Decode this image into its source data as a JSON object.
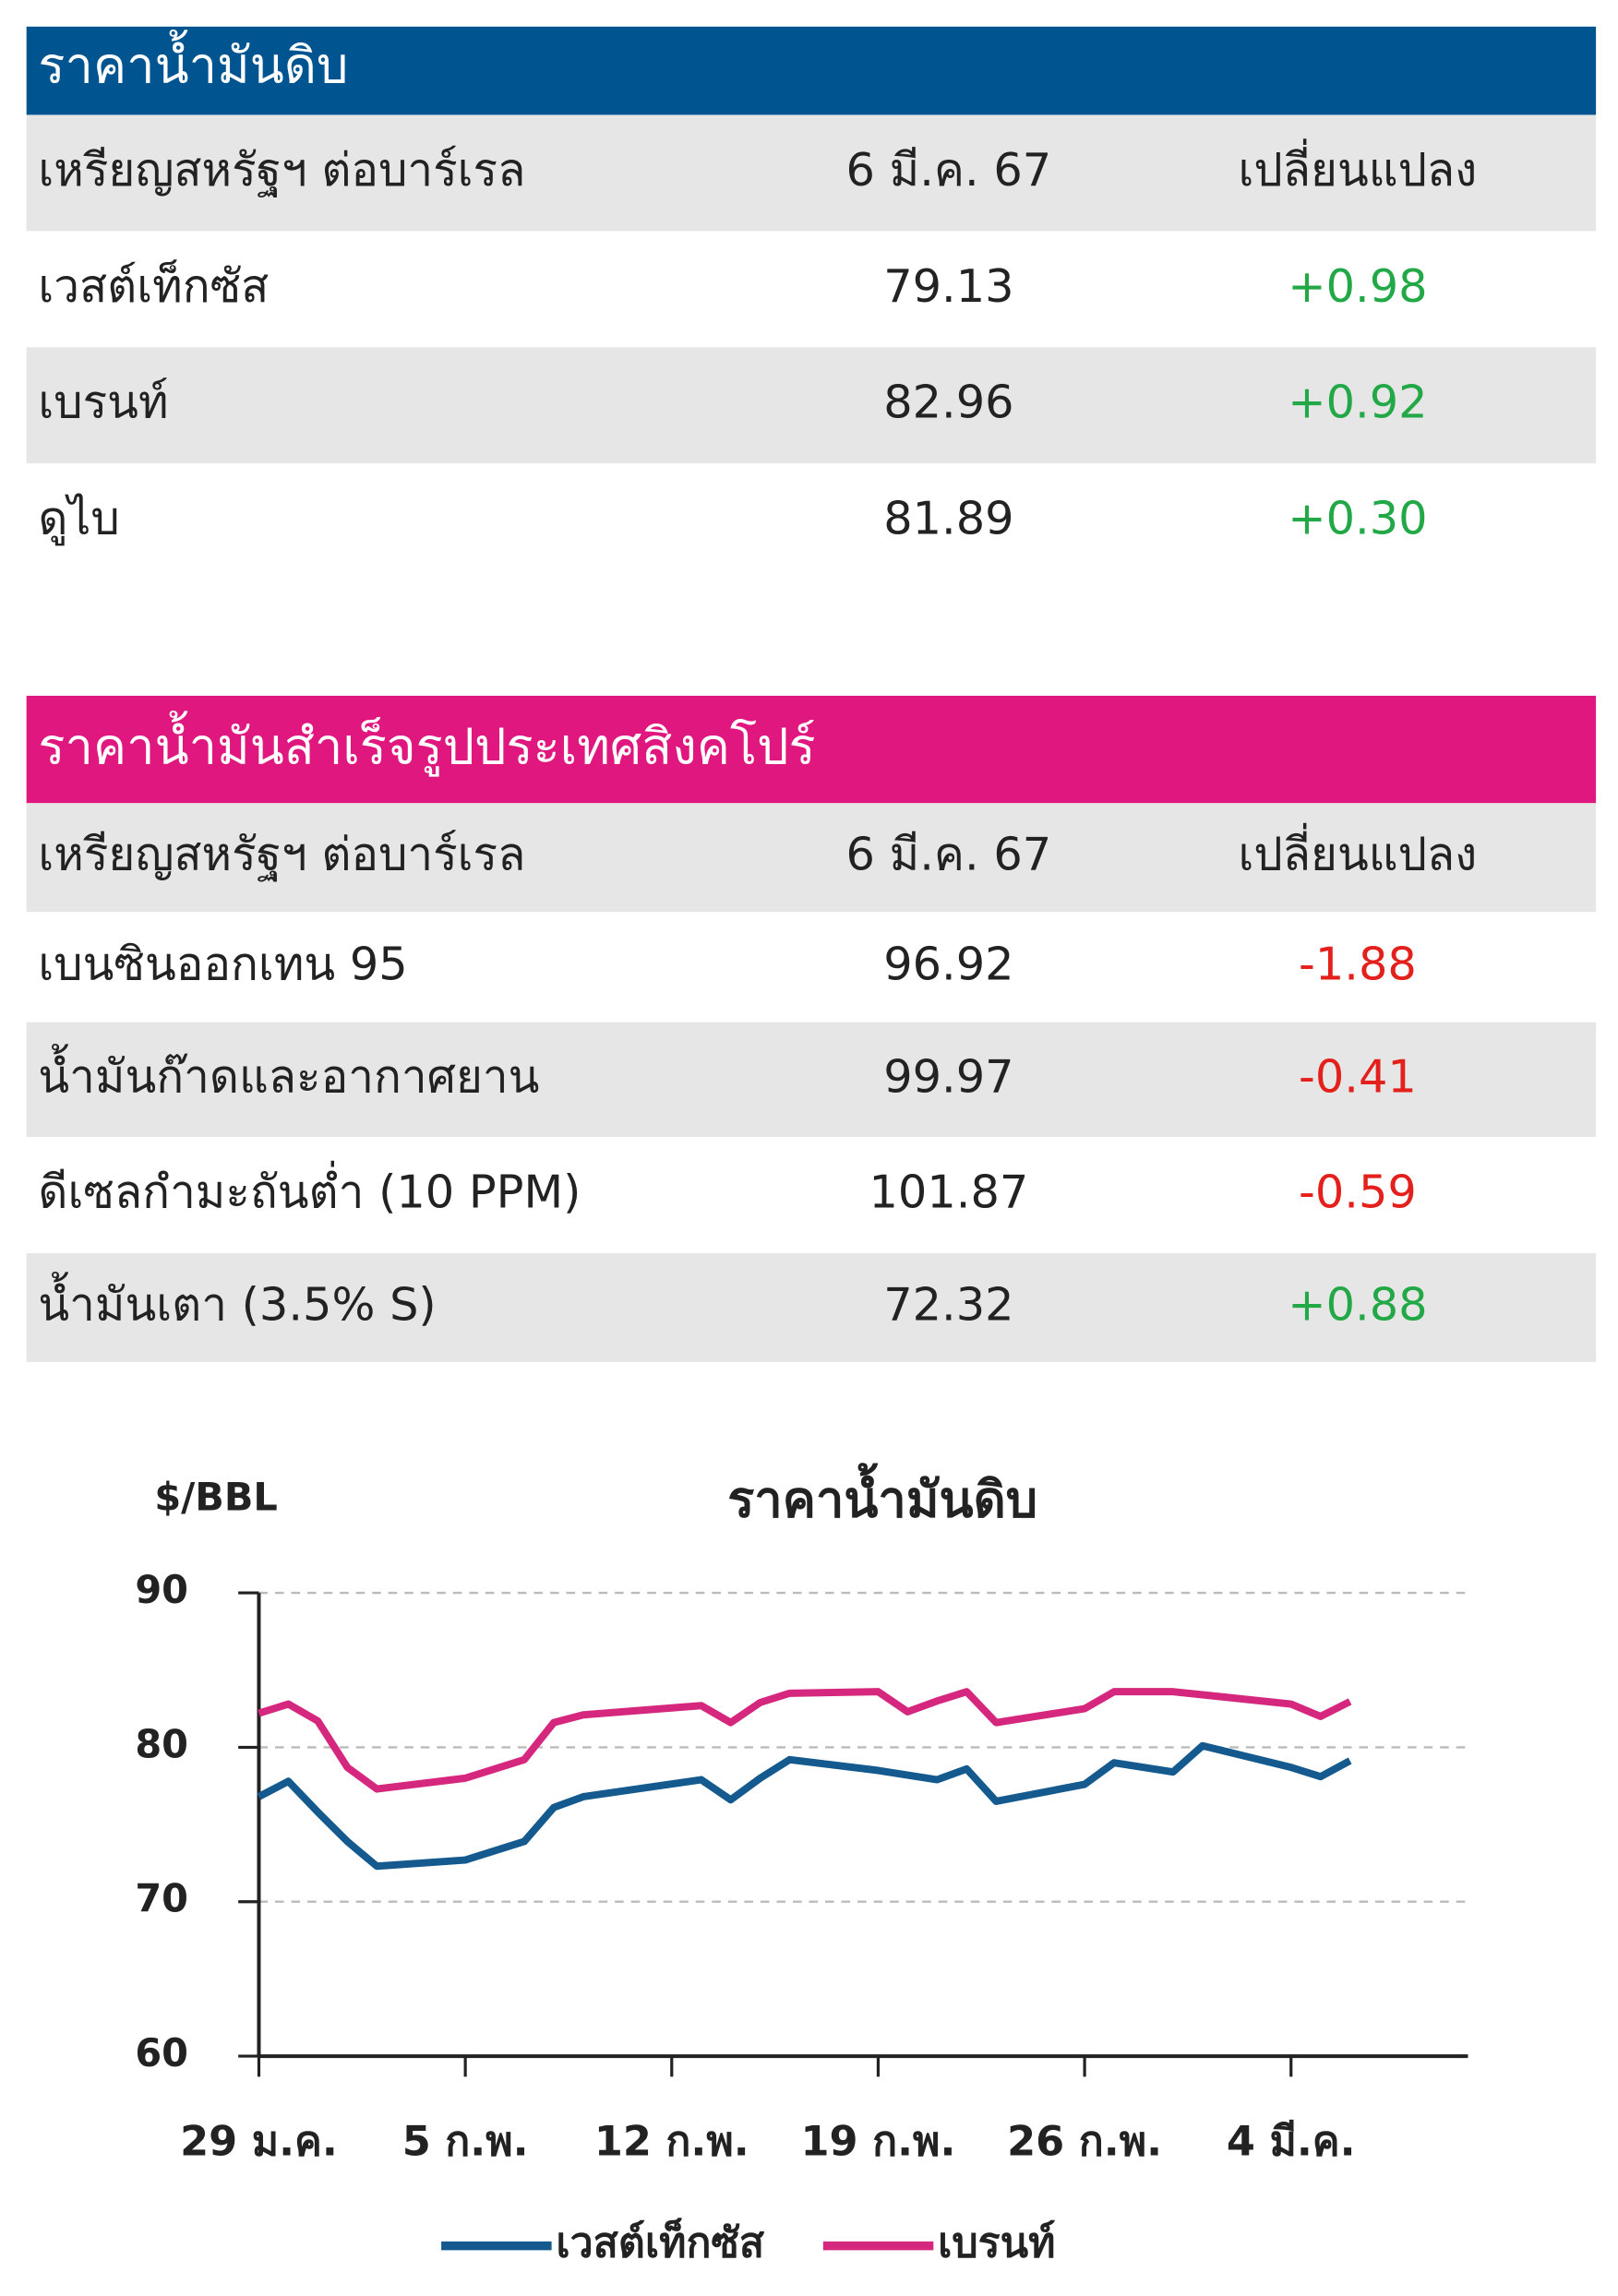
{
  "table1": {
    "title": "ราคาน้ำมันดิบ",
    "header": [
      "เหรียญสหรัฐฯ ต่อบาร์เรล",
      "6 มี.ค. 67",
      "เปลี่ยนแปลง"
    ],
    "rows": [
      [
        "เวสต์เท็กซัส",
        "79.13",
        "+0.98"
      ],
      [
        "เบรนท์",
        "82.96",
        "+0.92"
      ],
      [
        "ดูไบ",
        "81.89",
        "+0.30"
      ]
    ]
  },
  "table2": {
    "title": "ราคาน้ำมันสำเร็จรูปประเทศสิงคโปร์",
    "header": [
      "เหรียญสหรัฐฯ ต่อบาร์เรล",
      "6 มี.ค. 67",
      "เปลี่ยนแปลง"
    ],
    "rows": [
      [
        "เบนซินออกเทน 95",
        "96.92",
        "-1.88"
      ],
      [
        "น้ำมันก๊าดและอากาศยาน",
        "99.97",
        "-0.41"
      ],
      [
        "ดีเซลกำมะถันต่ำ (10 PPM)",
        "101.87",
        "-0.59"
      ],
      [
        "น้ำมันเตา (3.5% S)",
        "72.32",
        "+0.88"
      ]
    ]
  },
  "chart_data": {
    "type": "line",
    "title": "ราคาน้ำมันดิบ",
    "y_label": "$/BBL",
    "x": [
      0,
      1,
      2,
      3,
      4,
      7,
      9,
      10,
      11,
      15,
      16,
      17,
      18,
      21,
      22,
      23,
      24,
      25,
      28,
      29,
      31,
      32,
      35,
      36,
      37
    ],
    "xlim": [
      0,
      41
    ],
    "xticks": [
      {
        "value": 0,
        "label": "29 ม.ค."
      },
      {
        "value": 7,
        "label": "5 ก.พ."
      },
      {
        "value": 14,
        "label": "12 ก.พ."
      },
      {
        "value": 21,
        "label": "19 ก.พ."
      },
      {
        "value": 28,
        "label": "26 ก.พ."
      },
      {
        "value": 35,
        "label": "4 มี.ค."
      }
    ],
    "ylim": [
      60,
      90
    ],
    "yticks": [
      60,
      70,
      80,
      90
    ],
    "grid": true,
    "series": [
      {
        "name": "เวสต์เท็กซัส",
        "color": "#145a8e",
        "values": [
          76.8,
          77.8,
          75.8,
          73.9,
          72.3,
          72.7,
          73.9,
          76.1,
          76.8,
          77.9,
          76.6,
          78.0,
          79.2,
          78.5,
          78.2,
          77.9,
          78.6,
          76.5,
          77.6,
          79.0,
          78.4,
          80.1,
          78.7,
          78.1,
          79.13
        ]
      },
      {
        "name": "เบรนท์",
        "color": "#d6277f",
        "values": [
          82.2,
          82.8,
          81.7,
          78.7,
          77.3,
          78.0,
          79.2,
          81.6,
          82.1,
          82.7,
          81.6,
          82.9,
          83.5,
          83.6,
          82.3,
          83.0,
          83.6,
          81.6,
          82.5,
          83.6,
          83.6,
          83.4,
          82.8,
          82.0,
          82.96
        ]
      }
    ]
  }
}
